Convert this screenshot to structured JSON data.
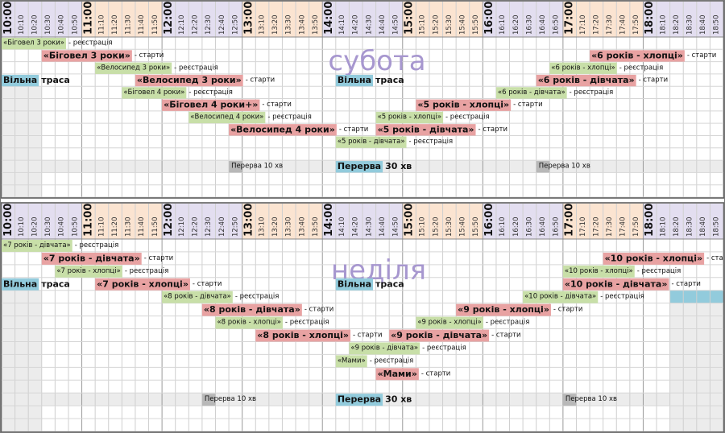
{
  "times": [
    "10:00",
    "10:10",
    "10:20",
    "10:30",
    "10:40",
    "10:50",
    "11:00",
    "11:10",
    "11:20",
    "11:30",
    "11:40",
    "11:50",
    "12:00",
    "12:10",
    "12:20",
    "12:30",
    "12:40",
    "12:50",
    "13:00",
    "13:10",
    "13:20",
    "13:30",
    "13:40",
    "13:50",
    "14:00",
    "14:10",
    "14:20",
    "14:30",
    "14:40",
    "14:50",
    "15:00",
    "15:10",
    "15:20",
    "15:30",
    "15:40",
    "15:50",
    "16:00",
    "16:10",
    "16:20",
    "16:30",
    "16:40",
    "16:50",
    "17:00",
    "17:10",
    "17:20",
    "17:30",
    "17:40",
    "17:50",
    "18:00",
    "18:10",
    "18:20",
    "18:30",
    "18:40",
    "18:50"
  ],
  "colors": {
    "start": "#e8a2a2",
    "registration": "#c8dfa8",
    "free": "#92cbdc",
    "pause": "#b8b8b8"
  },
  "panels": [
    {
      "day": "субота",
      "events": [
        {
          "name": "«Біговел 3 роки»",
          "suffix": "- реєстрація",
          "kind": "registration"
        },
        {
          "name": "«Біговел 3 роки»",
          "suffix": "- старти",
          "kind": "start"
        },
        {
          "name": "«6 років - хлопці»",
          "suffix": "- старти",
          "kind": "start"
        },
        {
          "name": "«Велосипед 3 роки»",
          "suffix": "- реєстрація",
          "kind": "registration"
        },
        {
          "name": "«6 років - хлопці»",
          "suffix": "- реєстрація",
          "kind": "registration"
        },
        {
          "name": "Вільна",
          "suffix": "траса",
          "kind": "free"
        },
        {
          "name": "«Велосипед 3 роки»",
          "suffix": "- старти",
          "kind": "start"
        },
        {
          "name": "Вільна",
          "suffix": "траса",
          "kind": "free"
        },
        {
          "name": "«6 років - дівчата»",
          "suffix": "- старти",
          "kind": "start"
        },
        {
          "name": "«Біговел 4 роки»",
          "suffix": "- реєстрація",
          "kind": "registration"
        },
        {
          "name": "«6 років - дівчата»",
          "suffix": "- реєстрація",
          "kind": "registration"
        },
        {
          "name": "«Біговел 4 роки+»",
          "suffix": "- старти",
          "kind": "start"
        },
        {
          "name": "«5 років - хлопці»",
          "suffix": "- старти",
          "kind": "start"
        },
        {
          "name": "«Велосипед 4 роки»",
          "suffix": "- реєстрація",
          "kind": "registration"
        },
        {
          "name": "«5 років - хлопці»",
          "suffix": "- реєстрація",
          "kind": "registration"
        },
        {
          "name": "«Велосипед 4 роки»",
          "suffix": "- старти",
          "kind": "start"
        },
        {
          "name": "«5 років - дівчата»",
          "suffix": "- старти",
          "kind": "start"
        },
        {
          "name": "«5 років - дівчата»",
          "suffix": "- реєстрація",
          "kind": "registration"
        },
        {
          "name": "Перерва 10 хв",
          "kind": "pause"
        },
        {
          "name": "Перерва",
          "suffix": "30 хв",
          "kind": "free"
        },
        {
          "name": "Перерва 10 хв",
          "kind": "pause"
        }
      ]
    },
    {
      "day": "неділя",
      "events": [
        {
          "name": "«7 років - дівчата»",
          "suffix": "- реєстрація",
          "kind": "registration"
        },
        {
          "name": "«7 років - дівчата»",
          "suffix": "- старти",
          "kind": "start"
        },
        {
          "name": "«10 років - хлопці»",
          "suffix": "- старти",
          "kind": "start"
        },
        {
          "name": "«7 років - хлопці»",
          "suffix": "- реєстрація",
          "kind": "registration"
        },
        {
          "name": "«10 років - хлопці»",
          "suffix": "- реєстрація",
          "kind": "registration"
        },
        {
          "name": "Вільна",
          "suffix": "траса",
          "kind": "free"
        },
        {
          "name": "«7 років - хлопці»",
          "suffix": "- старти",
          "kind": "start"
        },
        {
          "name": "Вільна",
          "suffix": "траса",
          "kind": "free"
        },
        {
          "name": "«10 років - дівчата»",
          "suffix": "- старти",
          "kind": "start"
        },
        {
          "name": "«8 років - дівчата»",
          "suffix": "- реєстрація",
          "kind": "registration"
        },
        {
          "name": "«10 років - дівчата»",
          "suffix": "- реєстрація",
          "kind": "registration"
        },
        {
          "name": "«8 років - дівчата»",
          "suffix": "- старти",
          "kind": "start"
        },
        {
          "name": "«9 років - хлопці»",
          "suffix": "- старти",
          "kind": "start"
        },
        {
          "name": "«8 років - хлопці»",
          "suffix": "- реєстрація",
          "kind": "registration"
        },
        {
          "name": "«9 років - хлопці»",
          "suffix": "- реєстрація",
          "kind": "registration"
        },
        {
          "name": "«8 років - хлопці»",
          "suffix": "- старти",
          "kind": "start"
        },
        {
          "name": "«9 років - дівчата»",
          "suffix": "- старти",
          "kind": "start"
        },
        {
          "name": "«9 років - дівчата»",
          "suffix": "- реєстрація",
          "kind": "registration"
        },
        {
          "name": "«Мами»",
          "suffix": "- реєстрація",
          "kind": "registration"
        },
        {
          "name": "«Мами»",
          "suffix": "- старти",
          "kind": "start"
        },
        {
          "name": "Перерва 10 хв",
          "kind": "pause"
        },
        {
          "name": "Перерва",
          "suffix": "30 хв",
          "kind": "free"
        },
        {
          "name": "Перерва 10 хв",
          "kind": "pause"
        }
      ]
    }
  ]
}
